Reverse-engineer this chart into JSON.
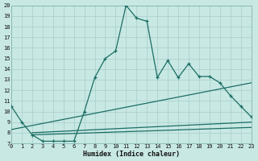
{
  "xlabel": "Humidex (Indice chaleur)",
  "bg_color": "#c8e8e4",
  "grid_color": "#a8ceca",
  "line_color": "#1a6e64",
  "xlim": [
    0,
    23
  ],
  "ylim": [
    7,
    20
  ],
  "xticks": [
    0,
    1,
    2,
    3,
    4,
    5,
    6,
    7,
    8,
    9,
    10,
    11,
    12,
    13,
    14,
    15,
    16,
    17,
    18,
    19,
    20,
    21,
    22,
    23
  ],
  "yticks": [
    7,
    8,
    9,
    10,
    11,
    12,
    13,
    14,
    15,
    16,
    17,
    18,
    19,
    20
  ],
  "line1_x": [
    0,
    1,
    2,
    3,
    4,
    5,
    6,
    7,
    8,
    9,
    10,
    11,
    12,
    13,
    14,
    15,
    16,
    17,
    18,
    19,
    20,
    21,
    22,
    23
  ],
  "line1_y": [
    10.5,
    9.0,
    7.8,
    7.2,
    7.2,
    7.2,
    7.2,
    10.0,
    13.2,
    15.0,
    15.7,
    20.0,
    18.8,
    18.5,
    13.2,
    14.8,
    13.2,
    14.5,
    13.3,
    13.3,
    12.7,
    11.5,
    10.5,
    9.5
  ],
  "line2_x": [
    0,
    23
  ],
  "line2_y": [
    8.3,
    12.7
  ],
  "line3_x": [
    2,
    23
  ],
  "line3_y": [
    8.0,
    9.0
  ],
  "line4_x": [
    2,
    23
  ],
  "line4_y": [
    7.8,
    8.5
  ]
}
